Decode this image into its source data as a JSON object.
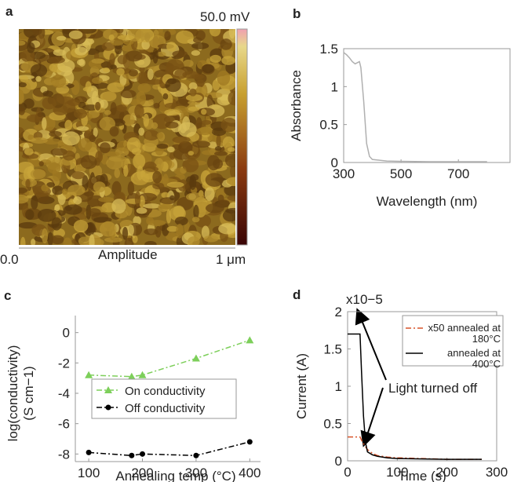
{
  "afm_image": {
    "label": "a",
    "scale_max": "50.0 mV",
    "x_start": "0.0",
    "x_label": "Amplitude",
    "x_end": "1 μm"
  },
  "chart_data": [
    {
      "type": "line",
      "label": "b",
      "xlabel": "Wavelength (nm)",
      "ylabel": "Absorbance",
      "xlim": [
        300,
        880
      ],
      "ylim": [
        0,
        1.5
      ],
      "xticks": [
        300,
        500,
        700
      ],
      "yticks": [
        0,
        0.5,
        1,
        1.5
      ],
      "series": [
        {
          "color": "#b0b0b0",
          "linestyle": "solid",
          "x": [
            300,
            310,
            320,
            330,
            340,
            350,
            355,
            360,
            370,
            380,
            390,
            400,
            450,
            500,
            600,
            700,
            800
          ],
          "values": [
            1.45,
            1.42,
            1.38,
            1.33,
            1.3,
            1.32,
            1.33,
            1.25,
            0.8,
            0.25,
            0.08,
            0.04,
            0.02,
            0.015,
            0.01,
            0.01,
            0.01
          ]
        }
      ]
    },
    {
      "type": "line",
      "label": "c",
      "xlabel": "Annealing temp (°C)",
      "ylabel": [
        "log(conductivity)",
        "(S cm−1)"
      ],
      "xlim": [
        75,
        420
      ],
      "ylim": [
        -8.5,
        0.5
      ],
      "xticks": [
        100,
        200,
        300,
        400
      ],
      "yticks": [
        0,
        -2,
        -4,
        -6,
        -8
      ],
      "legend": "lower left",
      "series": [
        {
          "name": "On conductivity",
          "color": "#7dcf5a",
          "linestyle": "dash-dot",
          "marker": "triangle",
          "x": [
            100,
            180,
            200,
            300,
            400
          ],
          "values": [
            -2.8,
            -2.9,
            -2.8,
            -1.7,
            -0.5
          ]
        },
        {
          "name": "Off conductivity",
          "color": "#000000",
          "linestyle": "dash-dot",
          "marker": "circle",
          "x": [
            100,
            180,
            200,
            300,
            400
          ],
          "values": [
            -7.9,
            -8.1,
            -8.0,
            -8.1,
            -7.2
          ]
        }
      ]
    },
    {
      "type": "line",
      "label": "d",
      "xlabel": "Time (s)",
      "ylabel": "Current (A)",
      "y_multiplier": "x10−5",
      "xlim": [
        0,
        300
      ],
      "ylim": [
        0,
        2
      ],
      "xticks": [
        0,
        100,
        200,
        300
      ],
      "yticks": [
        0,
        0.5,
        1,
        1.5,
        2
      ],
      "legend": "upper right",
      "annotation": "Light turned off",
      "series": [
        {
          "name": "x50 annealed at 180°C",
          "color": "#d9542a",
          "linestyle": "dash-dot",
          "x": [
            0,
            25,
            30,
            40,
            50,
            60,
            80,
            100,
            150,
            200,
            270
          ],
          "values": [
            0.32,
            0.32,
            0.25,
            0.15,
            0.1,
            0.07,
            0.05,
            0.04,
            0.03,
            0.02,
            0.02
          ]
        },
        {
          "name": "annealed at 400°C",
          "color": "#000000",
          "linestyle": "solid",
          "x": [
            0,
            25,
            28,
            32,
            36,
            40,
            50,
            60,
            80,
            100,
            150,
            200,
            270
          ],
          "values": [
            1.7,
            1.7,
            1.2,
            0.6,
            0.25,
            0.12,
            0.08,
            0.06,
            0.04,
            0.03,
            0.025,
            0.02,
            0.02
          ]
        }
      ]
    }
  ]
}
